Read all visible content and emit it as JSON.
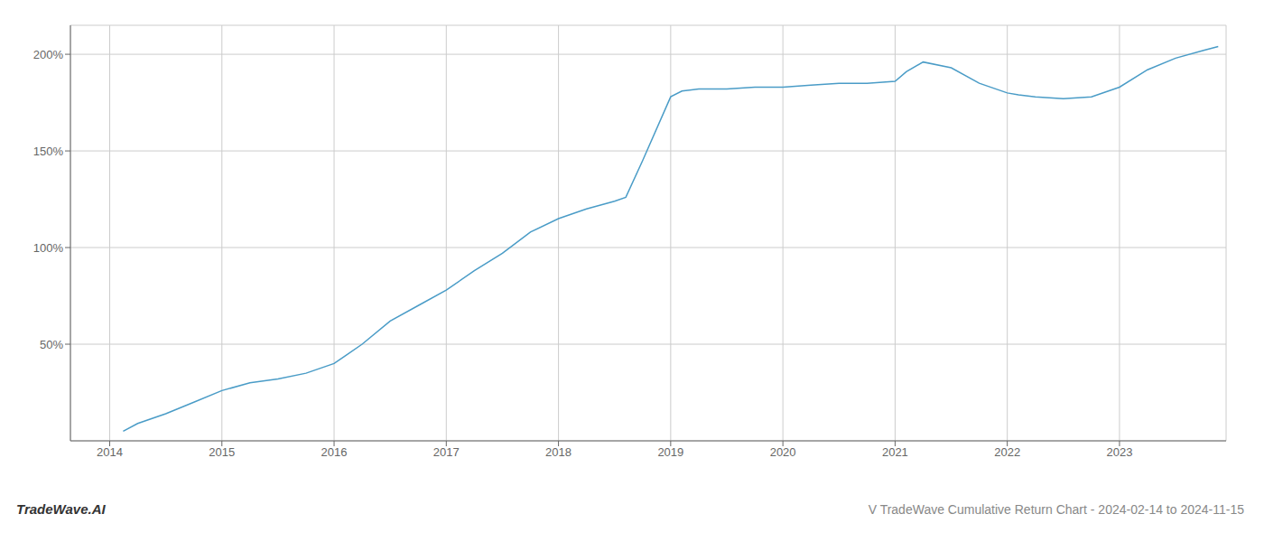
{
  "chart_data": {
    "type": "line",
    "title": "V TradeWave Cumulative Return Chart - 2024-02-14 to 2024-11-15",
    "annotations": [
      "TradeWave.AI"
    ],
    "color": "#4a9cc7",
    "grid": true,
    "x": [
      2014.12,
      2014.25,
      2014.5,
      2014.75,
      2015.0,
      2015.25,
      2015.5,
      2015.75,
      2016.0,
      2016.1,
      2016.25,
      2016.5,
      2016.75,
      2017.0,
      2017.25,
      2017.5,
      2017.75,
      2018.0,
      2018.25,
      2018.5,
      2018.6,
      2018.75,
      2019.0,
      2019.1,
      2019.25,
      2019.5,
      2019.75,
      2020.0,
      2020.25,
      2020.5,
      2020.75,
      2021.0,
      2021.1,
      2021.25,
      2021.5,
      2021.75,
      2022.0,
      2022.1,
      2022.25,
      2022.5,
      2022.75,
      2023.0,
      2023.25,
      2023.5,
      2023.75,
      2023.88
    ],
    "values": [
      5,
      9,
      14,
      20,
      26,
      30,
      32,
      35,
      40,
      44,
      50,
      62,
      70,
      78,
      88,
      97,
      108,
      115,
      120,
      124,
      126,
      145,
      178,
      181,
      182,
      182,
      183,
      183,
      184,
      185,
      185,
      186,
      191,
      196,
      193,
      185,
      180,
      179,
      178,
      177,
      178,
      183,
      192,
      198,
      202,
      204
    ],
    "xlim": [
      2013.65,
      2023.95
    ],
    "xticks": [
      2014,
      2015,
      2016,
      2017,
      2018,
      2019,
      2020,
      2021,
      2022,
      2023
    ],
    "ylim": [
      0,
      215
    ],
    "yticks": [
      {
        "value": 50,
        "label": "50%"
      },
      {
        "value": 100,
        "label": "100%"
      },
      {
        "value": 150,
        "label": "150%"
      },
      {
        "value": 200,
        "label": "200%"
      }
    ]
  }
}
